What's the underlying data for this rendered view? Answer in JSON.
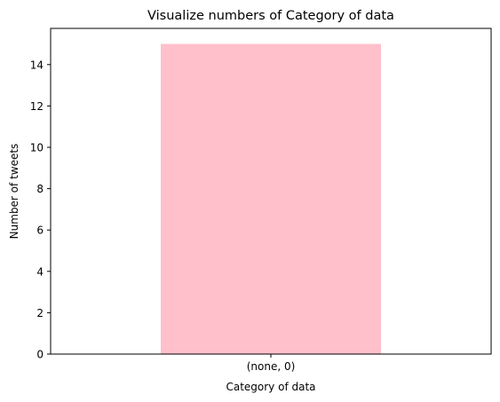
{
  "chart_data": {
    "type": "bar",
    "title": "Visualize numbers of Category of data",
    "xlabel": "Category of data",
    "ylabel": "Number of tweets",
    "categories": [
      "(none, 0)"
    ],
    "values": [
      15
    ],
    "ylim": [
      0,
      15.75
    ],
    "yticks": [
      0,
      2,
      4,
      6,
      8,
      10,
      12,
      14
    ],
    "grid": false,
    "legend": "none",
    "bar_color": "#ffc0cb"
  }
}
